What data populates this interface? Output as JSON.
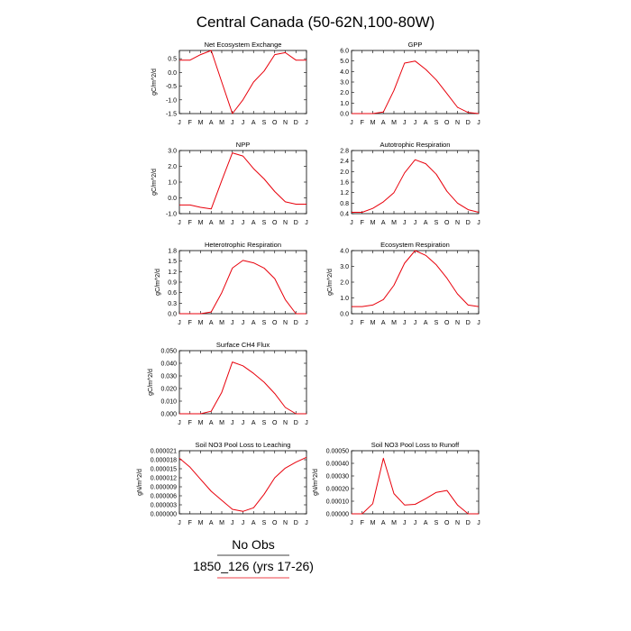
{
  "title": "Central Canada (50-62N,100-80W)",
  "months": [
    "J",
    "F",
    "M",
    "A",
    "M",
    "J",
    "J",
    "A",
    "S",
    "O",
    "N",
    "D",
    "J"
  ],
  "legend": {
    "obs_label": "No Obs",
    "model_label": "1850_126 (yrs 17-26)",
    "obs_color": "#000000",
    "model_color": "#e8000b"
  },
  "chart_data": [
    {
      "type": "line",
      "title": "Net Ecosystem Exchange",
      "ylabel": "gC/m^2/d",
      "ylim": [
        -1.5,
        0.8
      ],
      "yticks": [
        "0.5",
        "0.0",
        "-0.5",
        "-1.0",
        "-1.5"
      ],
      "ytick_values": [
        0.5,
        0.0,
        -0.5,
        -1.0,
        -1.5
      ],
      "x": [
        0,
        1,
        2,
        3,
        4,
        5,
        6,
        7,
        8,
        9,
        10,
        11,
        12
      ],
      "values": [
        0.45,
        0.45,
        0.65,
        0.8,
        -0.35,
        -1.5,
        -1.0,
        -0.35,
        0.05,
        0.65,
        0.72,
        0.45,
        0.45
      ]
    },
    {
      "type": "line",
      "title": "GPP",
      "ylabel": "",
      "ylim": [
        0,
        6
      ],
      "yticks": [
        "6.0",
        "5.0",
        "4.0",
        "3.0",
        "2.0",
        "1.0",
        "0.0"
      ],
      "ytick_values": [
        6,
        5,
        4,
        3,
        2,
        1,
        0
      ],
      "x": [
        0,
        1,
        2,
        3,
        4,
        5,
        6,
        7,
        8,
        9,
        10,
        11,
        12
      ],
      "values": [
        0.0,
        0.0,
        0.0,
        0.15,
        2.2,
        4.8,
        5.0,
        4.2,
        3.2,
        1.9,
        0.6,
        0.1,
        0.0
      ]
    },
    {
      "type": "line",
      "title": "NPP",
      "ylabel": "gC/m^2/d",
      "ylim": [
        -1,
        3
      ],
      "yticks": [
        "3.0",
        "2.0",
        "1.0",
        "0.0",
        "-1.0"
      ],
      "ytick_values": [
        3,
        2,
        1,
        0,
        -1
      ],
      "x": [
        0,
        1,
        2,
        3,
        4,
        5,
        6,
        7,
        8,
        9,
        10,
        11,
        12
      ],
      "values": [
        -0.45,
        -0.45,
        -0.6,
        -0.7,
        1.1,
        2.85,
        2.65,
        1.85,
        1.2,
        0.4,
        -0.25,
        -0.4,
        -0.4
      ]
    },
    {
      "type": "line",
      "title": "Autotrophic Respiration",
      "ylabel": "",
      "ylim": [
        0.4,
        2.8
      ],
      "yticks": [
        "2.8",
        "2.4",
        "2.0",
        "1.6",
        "1.2",
        "0.8",
        "0.4"
      ],
      "ytick_values": [
        2.8,
        2.4,
        2.0,
        1.6,
        1.2,
        0.8,
        0.4
      ],
      "x": [
        0,
        1,
        2,
        3,
        4,
        5,
        6,
        7,
        8,
        9,
        10,
        11,
        12
      ],
      "values": [
        0.45,
        0.45,
        0.6,
        0.85,
        1.2,
        1.95,
        2.45,
        2.3,
        1.9,
        1.25,
        0.8,
        0.55,
        0.45
      ]
    },
    {
      "type": "line",
      "title": "Heterotrophic Respiration",
      "ylabel": "gC/m^2/d",
      "ylim": [
        0,
        1.8
      ],
      "yticks": [
        "1.8",
        "1.5",
        "1.2",
        "0.9",
        "0.6",
        "0.3",
        "0.0"
      ],
      "ytick_values": [
        1.8,
        1.5,
        1.2,
        0.9,
        0.6,
        0.3,
        0.0
      ],
      "x": [
        0,
        1,
        2,
        3,
        4,
        5,
        6,
        7,
        8,
        9,
        10,
        11,
        12
      ],
      "values": [
        0.0,
        0.0,
        0.0,
        0.05,
        0.6,
        1.3,
        1.52,
        1.45,
        1.3,
        1.0,
        0.4,
        0.0,
        0.0
      ]
    },
    {
      "type": "line",
      "title": "Ecosystem Respiration",
      "ylabel": "gC/m^2/d",
      "ylim": [
        0,
        4
      ],
      "yticks": [
        "4.0",
        "3.0",
        "2.0",
        "1.0",
        "0.0"
      ],
      "ytick_values": [
        4,
        3,
        2,
        1,
        0
      ],
      "x": [
        0,
        1,
        2,
        3,
        4,
        5,
        6,
        7,
        8,
        9,
        10,
        11,
        12
      ],
      "values": [
        0.45,
        0.45,
        0.55,
        0.9,
        1.8,
        3.2,
        4.0,
        3.7,
        3.1,
        2.25,
        1.25,
        0.55,
        0.45
      ]
    },
    {
      "type": "line",
      "title": "Surface CH4 Flux",
      "ylabel": "gC/m^2/d",
      "ylim": [
        0,
        0.05
      ],
      "yticks": [
        "0.050",
        "0.040",
        "0.030",
        "0.020",
        "0.010",
        "0.000"
      ],
      "ytick_values": [
        0.05,
        0.04,
        0.03,
        0.02,
        0.01,
        0.0
      ],
      "x": [
        0,
        1,
        2,
        3,
        4,
        5,
        6,
        7,
        8,
        9,
        10,
        11,
        12
      ],
      "values": [
        0.0,
        0.0,
        0.0,
        0.002,
        0.017,
        0.041,
        0.038,
        0.032,
        0.025,
        0.016,
        0.005,
        0.0,
        0.0
      ]
    },
    {
      "type": "line",
      "title": "Soil NO3 Pool Loss to Leaching",
      "ylabel": "gN/m^2/d",
      "ylim": [
        0,
        2.1e-05
      ],
      "yticks": [
        "0.000021",
        "0.000018",
        "0.000015",
        "0.000012",
        "0.000009",
        "0.000006",
        "0.000003",
        "0.000000"
      ],
      "ytick_values": [
        2.1e-05,
        1.8e-05,
        1.5e-05,
        1.2e-05,
        9e-06,
        6e-06,
        3e-06,
        0.0
      ],
      "x": [
        0,
        1,
        2,
        3,
        4,
        5,
        6,
        7,
        8,
        9,
        10,
        11,
        12
      ],
      "values": [
        1.85e-05,
        1.55e-05,
        1.15e-05,
        7.5e-06,
        4.5e-06,
        1.5e-06,
        8e-07,
        2e-06,
        6.5e-06,
        1.2e-05,
        1.52e-05,
        1.72e-05,
        1.88e-05
      ]
    },
    {
      "type": "line",
      "title": "Soil NO3 Pool Loss to Runoff",
      "ylabel": "gN/m^2/d",
      "ylim": [
        0,
        0.0005
      ],
      "yticks": [
        "0.00050",
        "0.00040",
        "0.00030",
        "0.00020",
        "0.00010",
        "0.00000"
      ],
      "ytick_values": [
        0.0005,
        0.0004,
        0.0003,
        0.0002,
        0.0001,
        0.0
      ],
      "x": [
        0,
        1,
        2,
        3,
        4,
        5,
        6,
        7,
        8,
        9,
        10,
        11,
        12
      ],
      "values": [
        0.0,
        0.0,
        8e-05,
        0.00044,
        0.00016,
        7e-05,
        7.5e-05,
        0.00012,
        0.00017,
        0.000185,
        7e-05,
        0.0,
        0.0
      ]
    }
  ]
}
